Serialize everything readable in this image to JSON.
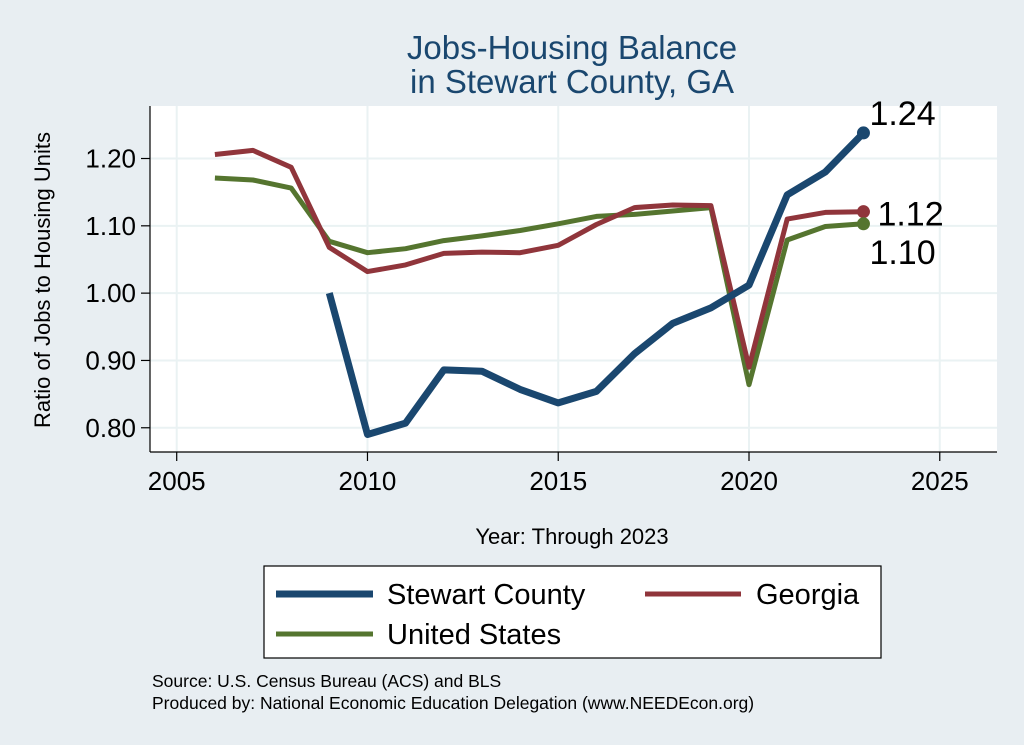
{
  "chart_data": {
    "type": "line",
    "title": [
      "Jobs-Housing Balance",
      "in Stewart County, GA"
    ],
    "xlabel": "Year: Through 2023",
    "ylabel": "Ratio of Jobs to Housing Units",
    "xlim": [
      2004.3,
      2026.5
    ],
    "ylim": [
      0.764,
      1.278
    ],
    "xticks": [
      2005,
      2010,
      2015,
      2020,
      2025
    ],
    "yticks": [
      0.8,
      0.9,
      1.0,
      1.1,
      1.2
    ],
    "ytick_labels": [
      "0.80",
      "0.90",
      "1.00",
      "1.10",
      "1.20"
    ],
    "grid": true,
    "legend_position": "bottom",
    "series": [
      {
        "name": "Stewart County",
        "color": "#1a476f",
        "x": [
          2009,
          2010,
          2011,
          2012,
          2013,
          2014,
          2015,
          2016,
          2017,
          2018,
          2019,
          2020,
          2021,
          2022,
          2023
        ],
        "values": [
          1.0,
          0.79,
          0.807,
          0.886,
          0.884,
          0.857,
          0.837,
          0.854,
          0.91,
          0.955,
          0.978,
          1.012,
          1.146,
          1.18,
          1.238
        ],
        "end_label": "1.24"
      },
      {
        "name": "Georgia",
        "color": "#90353b",
        "x": [
          2006,
          2007,
          2008,
          2009,
          2010,
          2011,
          2012,
          2013,
          2014,
          2015,
          2016,
          2017,
          2018,
          2019,
          2020,
          2021,
          2022,
          2023
        ],
        "values": [
          1.206,
          1.212,
          1.187,
          1.068,
          1.032,
          1.042,
          1.059,
          1.061,
          1.06,
          1.071,
          1.102,
          1.127,
          1.131,
          1.13,
          0.89,
          1.11,
          1.12,
          1.121
        ],
        "end_label": "1.12"
      },
      {
        "name": "United States",
        "color": "#55752f",
        "x": [
          2006,
          2007,
          2008,
          2009,
          2010,
          2011,
          2012,
          2013,
          2014,
          2015,
          2016,
          2017,
          2018,
          2019,
          2020,
          2021,
          2022,
          2023
        ],
        "values": [
          1.171,
          1.168,
          1.156,
          1.077,
          1.06,
          1.066,
          1.078,
          1.085,
          1.093,
          1.103,
          1.114,
          1.117,
          1.122,
          1.127,
          0.864,
          1.079,
          1.099,
          1.103
        ],
        "end_label": "1.10"
      }
    ],
    "legend": [
      "Stewart County",
      "Georgia",
      "United States"
    ]
  },
  "source": {
    "line1": "Source: U.S. Census Bureau (ACS) and BLS",
    "line2": "Produced by: National Economic Education Delegation (www.NEEDEcon.org)"
  }
}
